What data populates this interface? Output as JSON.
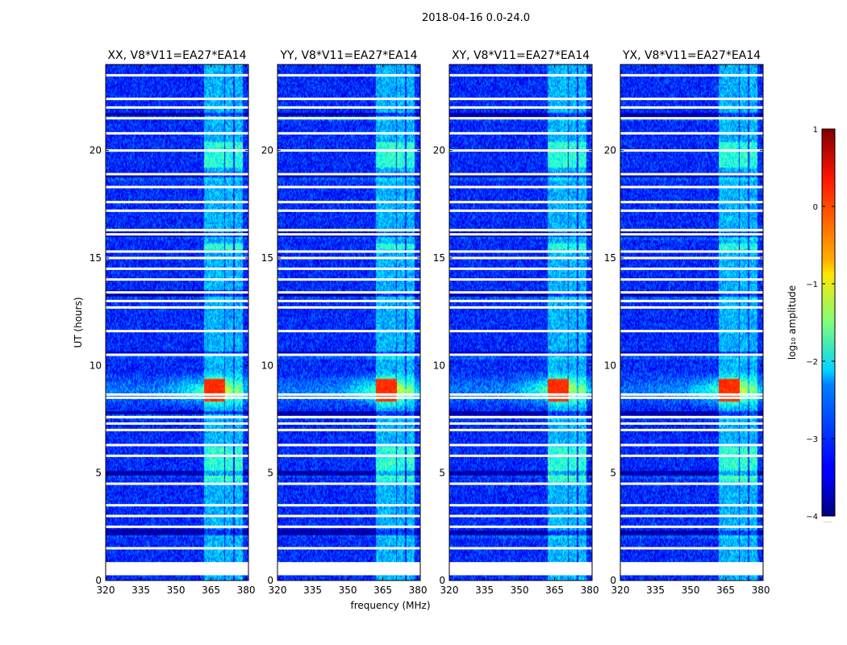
{
  "suptitle": "2018-04-16 0.0-24.0",
  "chart_data": {
    "type": "heatmap",
    "x_range": [
      320,
      381
    ],
    "y_range": [
      0,
      24
    ],
    "x_ticks": [
      320,
      335,
      350,
      365,
      380
    ],
    "y_ticks": [
      0,
      5,
      10,
      15,
      20
    ],
    "xlabel": "frequency (MHz)",
    "ylabel": "UT (hours)",
    "colorbar": {
      "label": "log₁₀ amplitude",
      "range": [
        -4,
        1
      ],
      "ticks": [
        "1",
        "0",
        "−1",
        "−2",
        "−3",
        "−4"
      ],
      "colormap": "jet",
      "bottom_label": "......"
    },
    "panels": [
      {
        "title": "XX, V8*V11=EA27*EA14"
      },
      {
        "title": "YY, V8*V11=EA27*EA14"
      },
      {
        "title": "XY, V8*V11=EA27*EA14"
      },
      {
        "title": "YX, V8*V11=EA27*EA14"
      }
    ],
    "features": {
      "background_log_amplitude": -3.2,
      "rfi_bands_mhz": [
        [
          362,
          366.5
        ],
        [
          366.5,
          370.5
        ],
        [
          371,
          374.5
        ],
        [
          375,
          378.5
        ]
      ],
      "strong_event_hours": [
        8.3,
        9.4
      ],
      "strong_event_peak_log_amplitude": 0.3,
      "flagged_hours": [
        0.3,
        0.8,
        1.5,
        2.5,
        3.0,
        3.5,
        4.5,
        5.8,
        6.3,
        7.0,
        7.3,
        7.6,
        8.5,
        8.65,
        10.5,
        11.6,
        12.7,
        13.0,
        13.4,
        14.0,
        14.5,
        15.0,
        15.3,
        16.1,
        16.3,
        17.2,
        17.6,
        18.3,
        18.9,
        20.0,
        20.8,
        21.5,
        22.0,
        22.4,
        23.5
      ]
    }
  }
}
